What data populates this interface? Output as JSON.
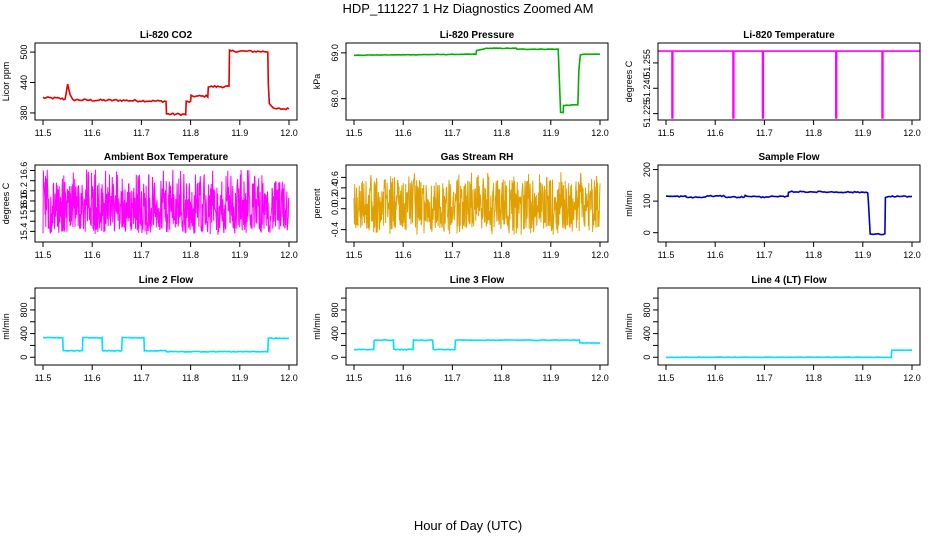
{
  "figure": {
    "title": "HDP_111227  1 Hz Diagnostics Zoomed AM",
    "xlabel": "Hour of Day (UTC)"
  },
  "chart_data": [
    {
      "id": "co2",
      "type": "line",
      "title": "Li-820 CO2",
      "ylabel": "Licor ppm",
      "color": "#e00000",
      "xlim": [
        11.5,
        12.0
      ],
      "xticks": [
        11.5,
        11.6,
        11.7,
        11.8,
        11.9,
        12.0
      ],
      "xtick_labels": [
        "11.5",
        "11.6",
        "11.7",
        "11.8",
        "11.9",
        "12.0"
      ],
      "ylim": [
        372,
        512
      ],
      "yticks": [
        380,
        440,
        500
      ],
      "ytick_labels": [
        "380",
        "440",
        "500"
      ],
      "series": [
        {
          "name": "CO2",
          "x": [
            11.5,
            11.53,
            11.545,
            11.55,
            11.555,
            11.56,
            11.6,
            11.65,
            11.7,
            11.75,
            11.751,
            11.79,
            11.791,
            11.8,
            11.801,
            11.835,
            11.836,
            11.878,
            11.879,
            11.957,
            11.958,
            11.96,
            11.968,
            12.0
          ],
          "y": [
            410,
            409,
            407,
            438,
            415,
            406,
            405,
            405,
            404,
            403,
            378,
            377,
            402,
            402,
            413,
            413,
            432,
            432,
            502,
            501,
            440,
            400,
            388,
            388
          ],
          "noise": 2
        }
      ]
    },
    {
      "id": "pressure",
      "type": "line",
      "title": "Li-820 Pressure",
      "ylabel": "kPa",
      "color": "#00b000",
      "xlim": [
        11.5,
        12.0
      ],
      "xticks": [
        11.5,
        11.6,
        11.7,
        11.8,
        11.9,
        12.0
      ],
      "xtick_labels": [
        "11.5",
        "11.6",
        "11.7",
        "11.8",
        "11.9",
        "12.0"
      ],
      "ylim": [
        67.6,
        69.15
      ],
      "yticks": [
        68.0,
        69.0
      ],
      "ytick_labels": [
        "68.0",
        "69.0"
      ],
      "series": [
        {
          "name": "Pressure",
          "x": [
            11.5,
            11.748,
            11.749,
            11.77,
            11.83,
            11.831,
            11.915,
            11.92,
            11.925,
            11.926,
            11.955,
            11.957,
            11.96,
            11.965,
            12.0
          ],
          "y": [
            68.95,
            68.97,
            69.05,
            69.1,
            69.1,
            69.08,
            69.08,
            67.7,
            67.7,
            67.85,
            67.87,
            68.6,
            68.95,
            68.97,
            68.97
          ],
          "noise": 0.005
        }
      ]
    },
    {
      "id": "temperature",
      "type": "line",
      "title": "Li-820 Temperature",
      "ylabel": "degrees C",
      "color": "#ff00ff",
      "xlim": [
        11.5,
        12.0
      ],
      "xticks": [
        11.5,
        11.6,
        11.7,
        11.8,
        11.9,
        12.0
      ],
      "xtick_labels": [
        "11.5",
        "11.6",
        "11.7",
        "11.8",
        "11.9",
        "12.0"
      ],
      "ylim": [
        51.223,
        51.265
      ],
      "yticks": [
        51.225,
        51.24,
        51.255
      ],
      "ytick_labels": [
        "51.225",
        "51.240",
        "51.255"
      ],
      "baseline": 51.262,
      "dips": [
        11.513,
        11.637,
        11.697,
        11.846,
        11.94
      ],
      "dip_value": 51.222
    },
    {
      "id": "ambient",
      "type": "line",
      "title": "Ambient Box Temperature",
      "ylabel": "degrees C",
      "color": "#ff00ff",
      "xlim": [
        11.5,
        12.0
      ],
      "xticks": [
        11.5,
        11.6,
        11.7,
        11.8,
        11.9,
        12.0
      ],
      "xtick_labels": [
        "11.5",
        "11.6",
        "11.7",
        "11.8",
        "11.9",
        "12.0"
      ],
      "ylim": [
        15.25,
        16.65
      ],
      "yticks": [
        15.4,
        15.6,
        15.8,
        16.0,
        16.2,
        16.4,
        16.6
      ],
      "ytick_labels": [
        "15.4",
        "",
        "15.8",
        "16.0",
        "16.2",
        "",
        "16.6"
      ],
      "series": [
        {
          "name": "Ambient",
          "mean": 15.88,
          "min": 15.33,
          "max": 16.62,
          "points": 700
        }
      ]
    },
    {
      "id": "rh",
      "type": "line",
      "title": "Gas Stream RH",
      "ylabel": "percent",
      "color": "#e0a000",
      "xlim": [
        11.5,
        12.0
      ],
      "xticks": [
        11.5,
        11.6,
        11.7,
        11.8,
        11.9,
        12.0
      ],
      "xtick_labels": [
        "11.5",
        "11.6",
        "11.7",
        "11.8",
        "11.9",
        "12.0"
      ],
      "ylim": [
        -0.58,
        0.78
      ],
      "yticks": [
        -0.4,
        0.0,
        0.2,
        0.4,
        0.6
      ],
      "ytick_labels": [
        "-0.4",
        "0.0",
        "0.2",
        "0.4",
        "0.6"
      ],
      "series": [
        {
          "name": "RH",
          "mean": 0.08,
          "min": -0.5,
          "max": 0.7,
          "points": 700
        }
      ]
    },
    {
      "id": "sample",
      "type": "line",
      "title": "Sample Flow",
      "ylabel": "ml/min",
      "color": "#0000c0",
      "xlim": [
        11.5,
        12.0
      ],
      "xticks": [
        11.5,
        11.6,
        11.7,
        11.8,
        11.9,
        12.0
      ],
      "xtick_labels": [
        "11.5",
        "11.6",
        "11.7",
        "11.8",
        "11.9",
        "12.0"
      ],
      "ylim": [
        -20,
        205
      ],
      "yticks": [
        0,
        100,
        200
      ],
      "ytick_labels": [
        "0",
        "100",
        "200"
      ],
      "series": [
        {
          "name": "Sample",
          "x": [
            11.5,
            11.54,
            11.541,
            11.58,
            11.581,
            11.62,
            11.621,
            11.66,
            11.661,
            11.7,
            11.701,
            11.748,
            11.749,
            11.91,
            11.911,
            11.915,
            11.945,
            11.946,
            11.95,
            12.0
          ],
          "y": [
            115,
            115,
            112,
            112,
            116,
            116,
            113,
            113,
            117,
            112,
            114,
            114,
            130,
            128,
            110,
            -5,
            -5,
            110,
            115,
            115
          ],
          "noise": 2
        }
      ]
    },
    {
      "id": "line2",
      "type": "line",
      "title": "Line 2 Flow",
      "ylabel": "ml/min",
      "color": "#00e0ff",
      "xlim": [
        11.5,
        12.0
      ],
      "xticks": [
        11.5,
        11.6,
        11.7,
        11.8,
        11.9,
        12.0
      ],
      "xtick_labels": [
        "11.5",
        "11.6",
        "11.7",
        "11.8",
        "11.9",
        "12.0"
      ],
      "ylim": [
        -80,
        1120
      ],
      "yticks": [
        0,
        200,
        400,
        600,
        800,
        1000
      ],
      "ytick_labels": [
        "0",
        "",
        "400",
        "",
        "800",
        ""
      ],
      "series": [
        {
          "name": "Line 2",
          "x": [
            11.5,
            11.54,
            11.541,
            11.58,
            11.581,
            11.62,
            11.621,
            11.66,
            11.661,
            11.705,
            11.706,
            11.75,
            11.751,
            11.957,
            11.958,
            12.0
          ],
          "y": [
            330,
            330,
            110,
            110,
            330,
            330,
            110,
            110,
            330,
            330,
            110,
            110,
            95,
            95,
            320,
            320
          ],
          "noise": 6
        }
      ]
    },
    {
      "id": "line3",
      "type": "line",
      "title": "Line 3 Flow",
      "ylabel": "ml/min",
      "color": "#00e0ff",
      "xlim": [
        11.5,
        12.0
      ],
      "xticks": [
        11.5,
        11.6,
        11.7,
        11.8,
        11.9,
        12.0
      ],
      "xtick_labels": [
        "11.5",
        "11.6",
        "11.7",
        "11.8",
        "11.9",
        "12.0"
      ],
      "ylim": [
        -80,
        1120
      ],
      "yticks": [
        0,
        200,
        400,
        600,
        800,
        1000
      ],
      "ytick_labels": [
        "0",
        "",
        "400",
        "",
        "800",
        ""
      ],
      "series": [
        {
          "name": "Line 3",
          "x": [
            11.5,
            11.54,
            11.541,
            11.58,
            11.581,
            11.62,
            11.621,
            11.66,
            11.661,
            11.705,
            11.706,
            11.958,
            11.959,
            12.0
          ],
          "y": [
            130,
            130,
            290,
            290,
            130,
            130,
            290,
            290,
            130,
            130,
            290,
            290,
            240,
            240
          ],
          "noise": 6
        }
      ]
    },
    {
      "id": "line4",
      "type": "line",
      "title": "Line 4 (LT) Flow",
      "ylabel": "ml/min",
      "color": "#00e0ff",
      "xlim": [
        11.5,
        12.0
      ],
      "xticks": [
        11.5,
        11.6,
        11.7,
        11.8,
        11.9,
        12.0
      ],
      "xtick_labels": [
        "11.5",
        "11.6",
        "11.7",
        "11.8",
        "11.9",
        "12.0"
      ],
      "ylim": [
        -80,
        1120
      ],
      "yticks": [
        0,
        200,
        400,
        600,
        800,
        1000
      ],
      "ytick_labels": [
        "0",
        "",
        "400",
        "",
        "800",
        ""
      ],
      "series": [
        {
          "name": "Line 4",
          "x": [
            11.5,
            11.958,
            11.959,
            12.0
          ],
          "y": [
            0,
            0,
            120,
            120
          ],
          "noise": 3
        }
      ]
    }
  ]
}
